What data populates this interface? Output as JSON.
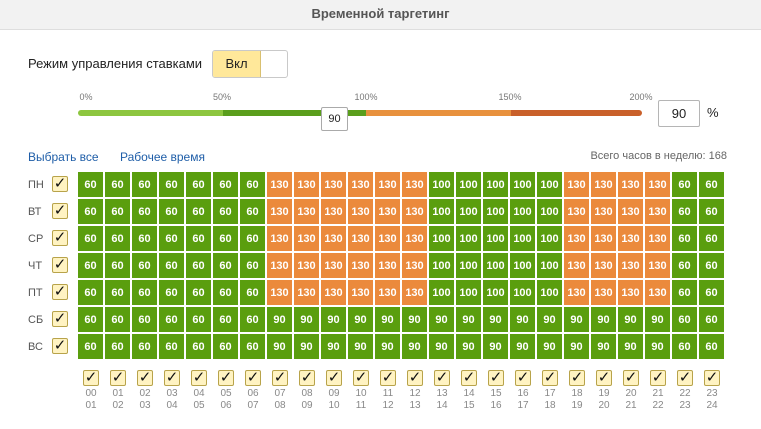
{
  "header": {
    "title": "Временной таргетинг"
  },
  "mode": {
    "label": "Режим управления ставками",
    "toggle_on_label": "Вкл"
  },
  "scale": {
    "labels": [
      "0%",
      "50%",
      "100%",
      "150%",
      "200%"
    ],
    "current_value": "90",
    "input_value": "90",
    "percent_sign": "%",
    "colors": {
      "low": "#8dc63f",
      "mid": "#5a9e1c",
      "high": "#e8913d",
      "max": "#c9602a"
    }
  },
  "links": {
    "select_all": "Выбрать все",
    "work_time": "Рабочее время"
  },
  "total_hours": "Всего часов в неделю: 168",
  "cell_colors": {
    "60": "#5a9e0e",
    "90": "#5a9e0e",
    "100": "#5a9e0e",
    "130": "#eb8a3c"
  },
  "days": [
    {
      "label": "ПН",
      "values": [
        60,
        60,
        60,
        60,
        60,
        60,
        60,
        130,
        130,
        130,
        130,
        130,
        130,
        100,
        100,
        100,
        100,
        100,
        130,
        130,
        130,
        130,
        60,
        60
      ]
    },
    {
      "label": "ВТ",
      "values": [
        60,
        60,
        60,
        60,
        60,
        60,
        60,
        130,
        130,
        130,
        130,
        130,
        130,
        100,
        100,
        100,
        100,
        100,
        130,
        130,
        130,
        130,
        60,
        60
      ]
    },
    {
      "label": "СР",
      "values": [
        60,
        60,
        60,
        60,
        60,
        60,
        60,
        130,
        130,
        130,
        130,
        130,
        130,
        100,
        100,
        100,
        100,
        100,
        130,
        130,
        130,
        130,
        60,
        60
      ]
    },
    {
      "label": "ЧТ",
      "values": [
        60,
        60,
        60,
        60,
        60,
        60,
        60,
        130,
        130,
        130,
        130,
        130,
        130,
        100,
        100,
        100,
        100,
        100,
        130,
        130,
        130,
        130,
        60,
        60
      ]
    },
    {
      "label": "ПТ",
      "values": [
        60,
        60,
        60,
        60,
        60,
        60,
        60,
        130,
        130,
        130,
        130,
        130,
        130,
        100,
        100,
        100,
        100,
        100,
        130,
        130,
        130,
        130,
        60,
        60
      ]
    },
    {
      "label": "СБ",
      "values": [
        60,
        60,
        60,
        60,
        60,
        60,
        60,
        90,
        90,
        90,
        90,
        90,
        90,
        90,
        90,
        90,
        90,
        90,
        90,
        90,
        90,
        90,
        60,
        60
      ]
    },
    {
      "label": "ВС",
      "values": [
        60,
        60,
        60,
        60,
        60,
        60,
        60,
        90,
        90,
        90,
        90,
        90,
        90,
        90,
        90,
        90,
        90,
        90,
        90,
        90,
        90,
        90,
        60,
        60
      ]
    }
  ],
  "hours": [
    [
      "00",
      "01"
    ],
    [
      "01",
      "02"
    ],
    [
      "02",
      "03"
    ],
    [
      "03",
      "04"
    ],
    [
      "04",
      "05"
    ],
    [
      "05",
      "06"
    ],
    [
      "06",
      "07"
    ],
    [
      "07",
      "08"
    ],
    [
      "08",
      "09"
    ],
    [
      "09",
      "10"
    ],
    [
      "10",
      "11"
    ],
    [
      "11",
      "12"
    ],
    [
      "12",
      "13"
    ],
    [
      "13",
      "14"
    ],
    [
      "14",
      "15"
    ],
    [
      "15",
      "16"
    ],
    [
      "16",
      "17"
    ],
    [
      "17",
      "18"
    ],
    [
      "18",
      "19"
    ],
    [
      "19",
      "20"
    ],
    [
      "20",
      "21"
    ],
    [
      "21",
      "22"
    ],
    [
      "22",
      "23"
    ],
    [
      "23",
      "24"
    ]
  ],
  "checkmark": "✓"
}
